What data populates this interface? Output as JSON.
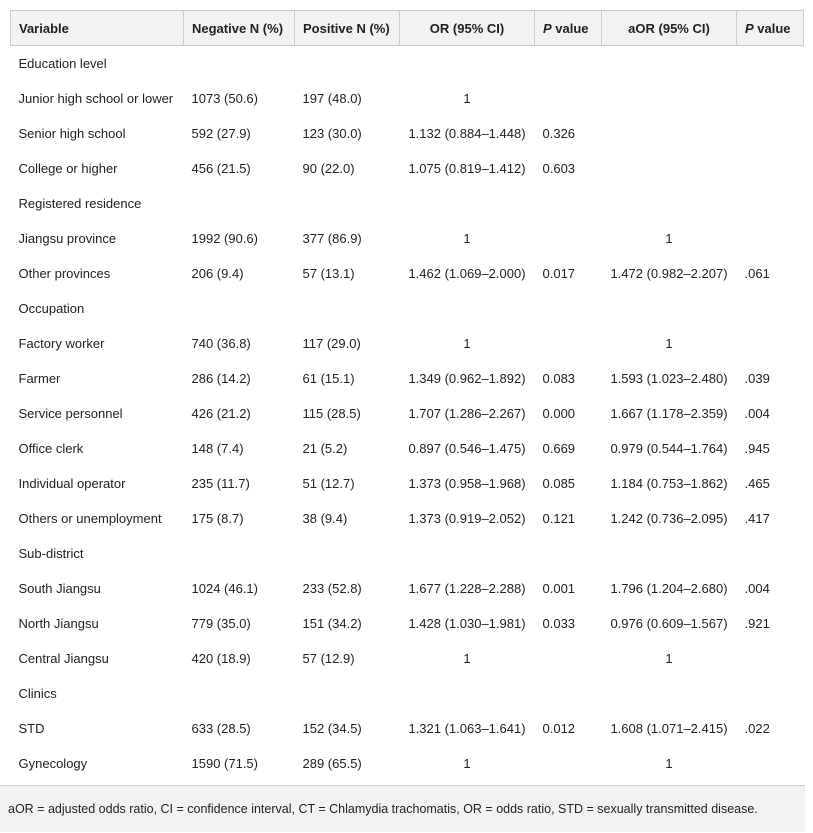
{
  "table": {
    "header": [
      "Variable",
      "Negative N (%)",
      "Positive N (%)",
      "OR (95% CI)",
      "P value",
      "aOR (95% CI)",
      "P value"
    ],
    "rows": [
      {
        "group": "Education level"
      },
      {
        "variable": "Junior high school or lower",
        "negative": "1073 (50.6)",
        "positive": "197 (48.0)",
        "or": "1"
      },
      {
        "variable": "Senior high school",
        "negative": "592 (27.9)",
        "positive": "123 (30.0)",
        "or": "1.132 (0.884–1.448)",
        "p": "0.326"
      },
      {
        "variable": "College or higher",
        "negative": "456 (21.5)",
        "positive": "90 (22.0)",
        "or": "1.075 (0.819–1.412)",
        "p": "0.603"
      },
      {
        "group": "Registered residence"
      },
      {
        "variable": "Jiangsu province",
        "negative": "1992 (90.6)",
        "positive": "377 (86.9)",
        "or": "1",
        "aor": "1"
      },
      {
        "variable": "Other provinces",
        "negative": "206 (9.4)",
        "positive": "57 (13.1)",
        "or": "1.462 (1.069–2.000)",
        "p": "0.017",
        "aor": "1.472 (0.982–2.207)",
        "ap": ".061"
      },
      {
        "group": "Occupation"
      },
      {
        "variable": "Factory worker",
        "negative": "740 (36.8)",
        "positive": "117 (29.0)",
        "or": "1",
        "aor": "1"
      },
      {
        "variable": "Farmer",
        "negative": "286 (14.2)",
        "positive": "61 (15.1)",
        "or": "1.349 (0.962–1.892)",
        "p": "0.083",
        "aor": "1.593 (1.023–2.480)",
        "ap": ".039"
      },
      {
        "variable": "Service personnel",
        "negative": "426 (21.2)",
        "positive": "115 (28.5)",
        "or": "1.707 (1.286–2.267)",
        "p": "0.000",
        "aor": "1.667 (1.178–2.359)",
        "ap": ".004"
      },
      {
        "variable": "Office clerk",
        "negative": "148 (7.4)",
        "positive": "21 (5.2)",
        "or": "0.897 (0.546–1.475)",
        "p": "0.669",
        "aor": "0.979 (0.544–1.764)",
        "ap": ".945"
      },
      {
        "variable": "Individual operator",
        "negative": "235 (11.7)",
        "positive": "51 (12.7)",
        "or": "1.373 (0.958–1.968)",
        "p": "0.085",
        "aor": "1.184 (0.753–1.862)",
        "ap": ".465"
      },
      {
        "variable": "Others or unemployment",
        "negative": "175 (8.7)",
        "positive": "38 (9.4)",
        "or": "1.373 (0.919–2.052)",
        "p": "0.121",
        "aor": "1.242 (0.736–2.095)",
        "ap": ".417"
      },
      {
        "group": "Sub-district"
      },
      {
        "variable": "South Jiangsu",
        "negative": "1024 (46.1)",
        "positive": "233 (52.8)",
        "or": "1.677 (1.228–2.288)",
        "p": "0.001",
        "aor": "1.796 (1.204–2.680)",
        "ap": ".004"
      },
      {
        "variable": "North Jiangsu",
        "negative": "779 (35.0)",
        "positive": "151 (34.2)",
        "or": "1.428 (1.030–1.981)",
        "p": "0.033",
        "aor": "0.976 (0.609–1.567)",
        "ap": ".921"
      },
      {
        "variable": "Central Jiangsu",
        "negative": "420 (18.9)",
        "positive": "57 (12.9)",
        "or": "1",
        "aor": "1"
      },
      {
        "group": "Clinics"
      },
      {
        "variable": "STD",
        "negative": "633 (28.5)",
        "positive": "152 (34.5)",
        "or": "1.321 (1.063–1.641)",
        "p": "0.012",
        "aor": "1.608 (1.071–2.415)",
        "ap": ".022"
      },
      {
        "variable": "Gynecology",
        "negative": "1590 (71.5)",
        "positive": "289 (65.5)",
        "or": "1",
        "aor": "1"
      }
    ],
    "footnote": "aOR = adjusted odds ratio, CI = confidence interval, CT = Chlamydia trachomatis, OR = odds ratio, STD = sexually transmitted disease."
  }
}
